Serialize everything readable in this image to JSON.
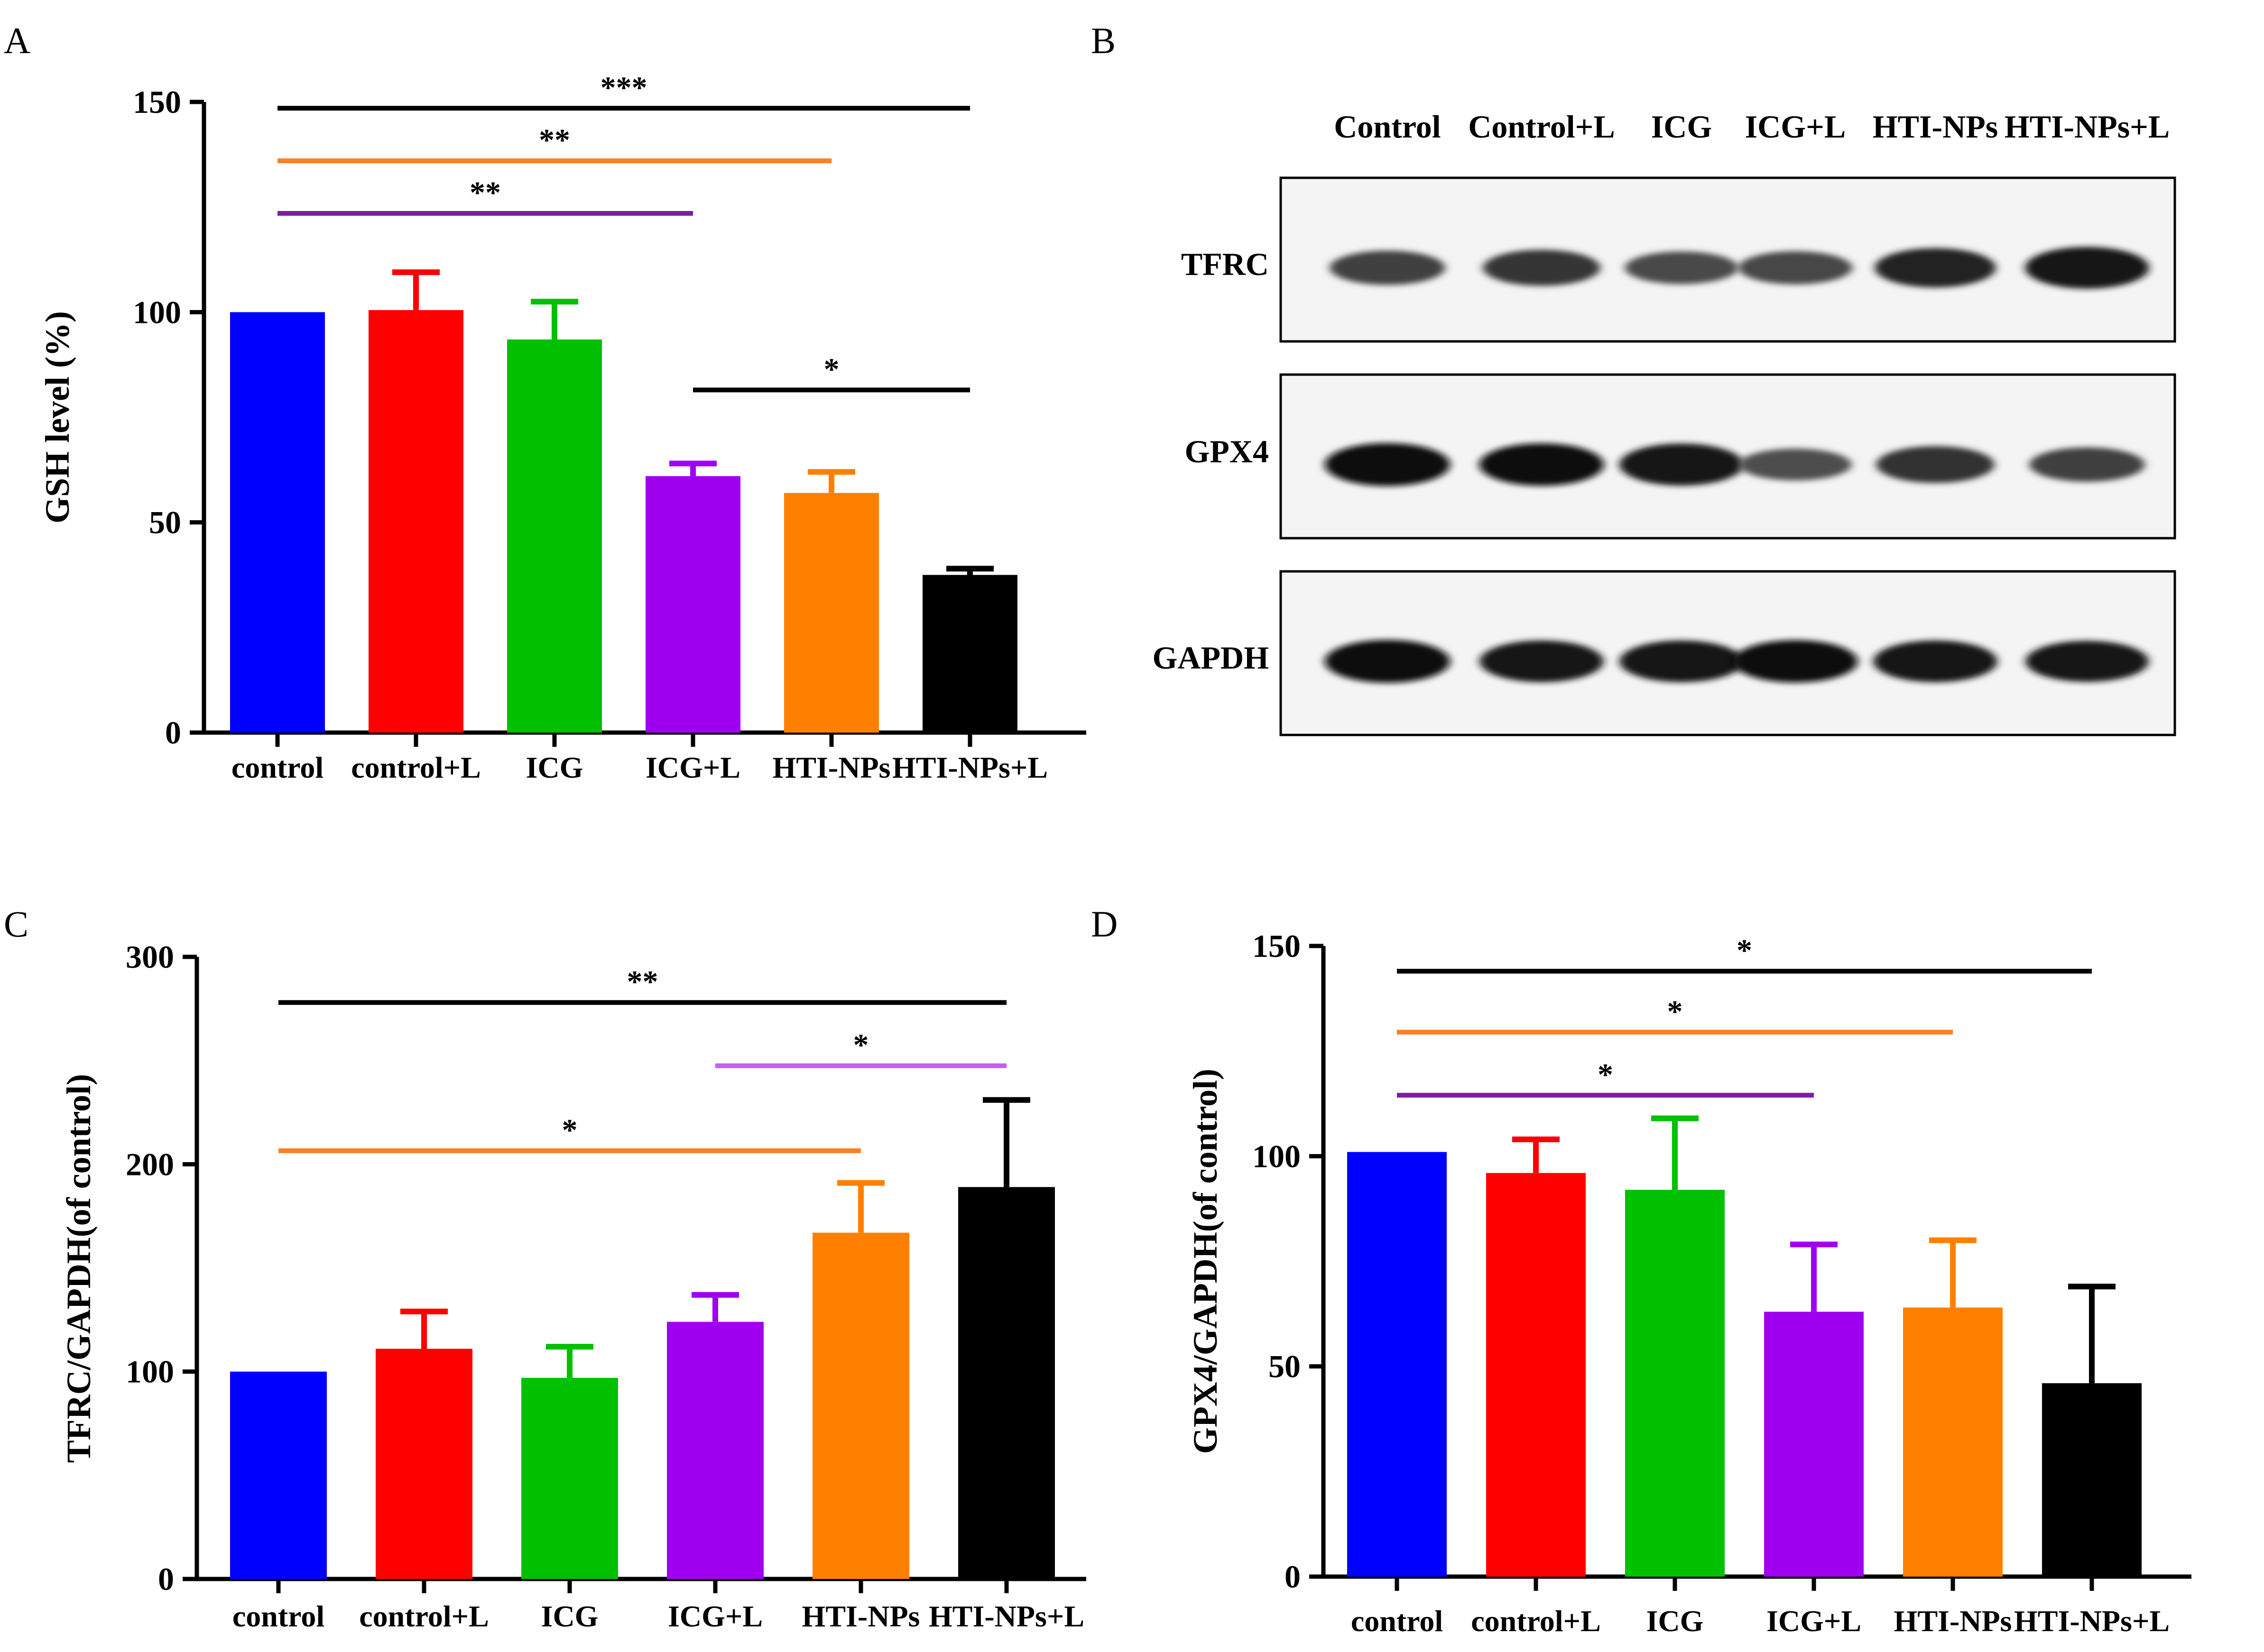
{
  "colors": {
    "control": "#0000ff",
    "control+L": "#ff0000",
    "ICG": "#00c000",
    "ICG+L": "#a000f0",
    "HTI-NPs": "#ff8000",
    "HTI-NPs+L": "#000000",
    "sig_black": "#000000",
    "sig_orange": "#ff7f27",
    "sig_purple": "#7a1fa2",
    "sig_violet": "#c060f0"
  },
  "panel_labels": {
    "A": "A",
    "B": "B",
    "C": "C",
    "D": "D"
  },
  "chart_data": [
    {
      "id": "A",
      "type": "bar",
      "title": "",
      "xlabel": "",
      "ylabel": "GSH level (%)",
      "ylim": [
        0,
        150
      ],
      "yticks": [
        0,
        50,
        100,
        150
      ],
      "categories": [
        "control",
        "control+L",
        "ICG",
        "ICG+L",
        "HTI-NPs",
        "HTI-NPs+L"
      ],
      "values": [
        100,
        100.5,
        93.5,
        61,
        57,
        37.5
      ],
      "errors": [
        0,
        9,
        9,
        3,
        5,
        1.5
      ],
      "significance": [
        {
          "from": 0,
          "to": 5,
          "label": "***",
          "y": 148.5,
          "color": "sig_black"
        },
        {
          "from": 0,
          "to": 4,
          "label": "**",
          "y": 136,
          "color": "sig_orange"
        },
        {
          "from": 0,
          "to": 3,
          "label": "**",
          "y": 123.5,
          "color": "sig_purple"
        },
        {
          "from": 3,
          "to": 5,
          "label": "*",
          "y": 81.5,
          "color": "sig_black"
        }
      ]
    },
    {
      "id": "C",
      "type": "bar",
      "title": "",
      "xlabel": "",
      "ylabel": "TFRC/GAPDH(of control)",
      "ylim": [
        0,
        300
      ],
      "yticks": [
        0,
        100,
        200,
        300
      ],
      "categories": [
        "control",
        "control+L",
        "ICG",
        "ICG+L",
        "HTI-NPs",
        "HTI-NPs+L"
      ],
      "values": [
        100,
        111,
        97,
        124,
        167,
        189
      ],
      "errors": [
        0,
        18,
        15,
        13,
        24,
        42
      ],
      "significance": [
        {
          "from": 0,
          "to": 5,
          "label": "**",
          "y": 278,
          "color": "sig_black"
        },
        {
          "from": 3,
          "to": 5,
          "label": "*",
          "y": 247.5,
          "color": "sig_violet"
        },
        {
          "from": 0,
          "to": 4,
          "label": "*",
          "y": 206.5,
          "color": "sig_orange"
        }
      ]
    },
    {
      "id": "D",
      "type": "bar",
      "title": "",
      "xlabel": "",
      "ylabel": "GPX4/GAPDH(of control)",
      "ylim": [
        0,
        150
      ],
      "yticks": [
        0,
        50,
        100,
        150
      ],
      "categories": [
        "control",
        "control+L",
        "ICG",
        "ICG+L",
        "HTI-NPs",
        "HTI-NPs+L"
      ],
      "values": [
        101,
        96,
        92,
        63,
        64,
        46
      ],
      "errors": [
        0,
        8,
        17,
        16,
        16,
        23
      ],
      "significance": [
        {
          "from": 0,
          "to": 5,
          "label": "*",
          "y": 144,
          "color": "sig_black"
        },
        {
          "from": 0,
          "to": 4,
          "label": "*",
          "y": 129.5,
          "color": "sig_orange"
        },
        {
          "from": 0,
          "to": 3,
          "label": "*",
          "y": 114.5,
          "color": "sig_purple"
        }
      ]
    }
  ],
  "western_blot": {
    "columns": [
      "Control",
      "Control+L",
      "ICG",
      "ICG+L",
      "HTI-NPs",
      "HTI-NPs+L"
    ],
    "rows": [
      {
        "label": "TFRC",
        "band_intensity": [
          0.55,
          0.62,
          0.48,
          0.5,
          0.75,
          0.85
        ]
      },
      {
        "label": "GPX4",
        "band_intensity": [
          0.9,
          0.88,
          0.86,
          0.45,
          0.65,
          0.55
        ]
      },
      {
        "label": "GAPDH",
        "band_intensity": [
          0.9,
          0.85,
          0.85,
          0.88,
          0.85,
          0.82
        ]
      }
    ]
  }
}
